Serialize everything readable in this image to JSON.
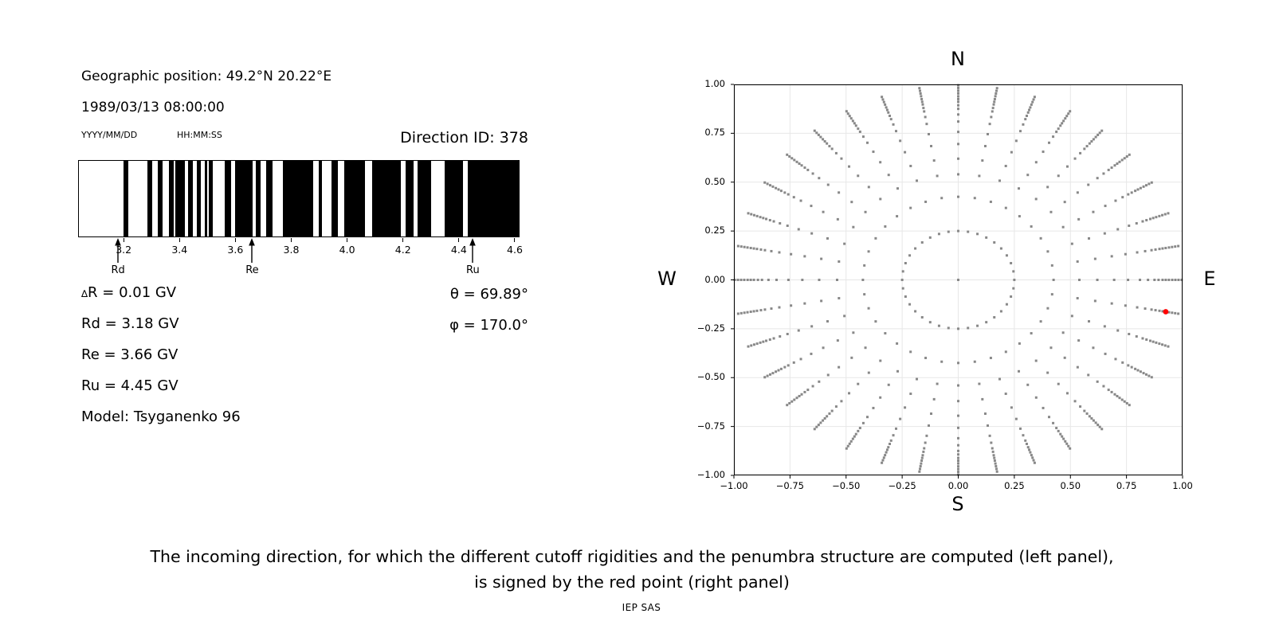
{
  "left_panel": {
    "geo_position": "Geographic position: 49.2°N 20.22°E",
    "datetime": "1989/03/13 08:00:00",
    "date_format_label": "YYYY/MM/DD",
    "time_format_label": "HH:MM:SS",
    "direction_id": "Direction ID: 378",
    "params_left": [
      "∆R = 0.01 GV",
      "Rd = 3.18 GV",
      "Re = 3.66 GV",
      "Ru = 4.45 GV",
      "Model: Tsyganenko 96"
    ],
    "params_right": [
      "θ = 69.89°",
      "φ = 170.0°"
    ]
  },
  "caption": {
    "line1": "The incoming direction, for which the different cutoff rigidities and the penumbra structure are computed (left panel),",
    "line2": "is signed by the red point (right panel)",
    "credit": "IEP SAS"
  },
  "chart_data": [
    {
      "type": "bar",
      "name": "penumbra-structure",
      "x_range": [
        3.037,
        4.62
      ],
      "x_ticks": [
        3.2,
        3.4,
        3.6,
        3.8,
        4.0,
        4.2,
        4.4,
        4.6
      ],
      "x_tick_labels": [
        "3.2",
        "3.4",
        "3.6",
        "3.8",
        "4.0",
        "4.2",
        "4.4",
        "4.6"
      ],
      "band_color": "#000000",
      "allowed_bands_gv": [
        [
          3.197,
          3.214
        ],
        [
          3.284,
          3.3
        ],
        [
          3.322,
          3.338
        ],
        [
          3.362,
          3.377
        ],
        [
          3.384,
          3.417
        ],
        [
          3.431,
          3.447
        ],
        [
          3.46,
          3.476
        ],
        [
          3.491,
          3.498
        ],
        [
          3.504,
          3.518
        ],
        [
          3.563,
          3.586
        ],
        [
          3.6,
          3.662
        ],
        [
          3.673,
          3.69
        ],
        [
          3.71,
          3.733
        ],
        [
          3.771,
          3.881
        ],
        [
          3.9,
          3.911
        ],
        [
          3.946,
          3.969
        ],
        [
          3.991,
          4.067
        ],
        [
          4.093,
          4.195
        ],
        [
          4.212,
          4.241
        ],
        [
          4.257,
          4.305
        ],
        [
          4.352,
          4.419
        ],
        [
          4.436,
          4.62
        ]
      ],
      "markers": [
        {
          "label": "Rd",
          "value_gv": 3.18
        },
        {
          "label": "Re",
          "value_gv": 3.66
        },
        {
          "label": "Ru",
          "value_gv": 4.45
        }
      ]
    },
    {
      "type": "scatter",
      "name": "incoming-directions",
      "x_range": [
        -1.0,
        1.0
      ],
      "y_range": [
        -1.0,
        1.0
      ],
      "tick_values": [
        -1.0,
        -0.75,
        -0.5,
        -0.25,
        0.0,
        0.25,
        0.5,
        0.75,
        1.0
      ],
      "tick_labels": [
        "−1.00",
        "−0.75",
        "−0.50",
        "−0.25",
        "0.00",
        "0.25",
        "0.50",
        "0.75",
        "1.00"
      ],
      "grid": true,
      "grid_color": "#e7e7e7",
      "compass_labels": {
        "top": "N",
        "bottom": "S",
        "left": "W",
        "right": "E"
      },
      "azimuth_step_deg": 10,
      "ring_radii": [
        0,
        0.25,
        0.425,
        0.54,
        0.62,
        0.695,
        0.757,
        0.81,
        0.846,
        0.875,
        0.893,
        0.911,
        0.925,
        0.939,
        0.954,
        0.968,
        0.982,
        0.996
      ],
      "dot_color": "#888888",
      "selected_point": {
        "x": 0.925,
        "y": -0.163,
        "theta_deg": 69.89,
        "phi_deg": 170.0,
        "color": "#ff0000"
      }
    }
  ]
}
